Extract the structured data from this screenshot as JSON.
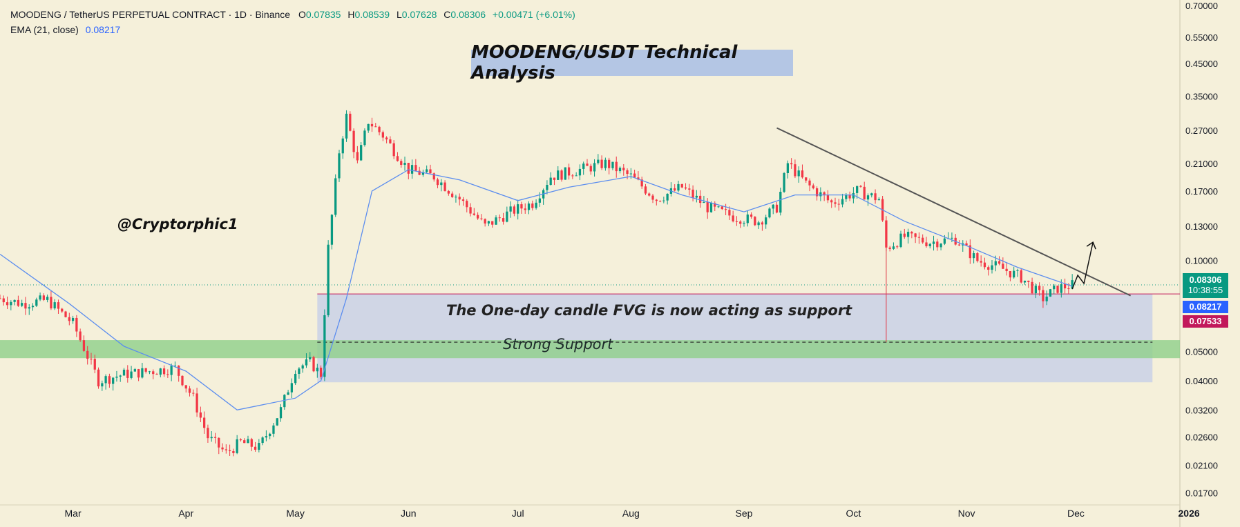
{
  "header": {
    "symbol": "MOODENG / TetherUS PERPETUAL CONTRACT · 1D · Binance",
    "open_label": "O",
    "open": "0.07835",
    "high_label": "H",
    "high": "0.08539",
    "low_label": "L",
    "low": "0.07628",
    "close_label": "C",
    "close": "0.08306",
    "change": "+0.00471 (+6.01%)",
    "ema_label": "EMA (21, close)",
    "ema_value": "0.08217"
  },
  "annotations": {
    "title": "MOODENG/USDT Technical Analysis",
    "handle": "@Cryptorphic1",
    "fvg_note": "The One-day candle FVG is now acting as support",
    "support_note": "Strong Support"
  },
  "price_tags": {
    "last_price": "0.08306",
    "countdown": "10:38:55",
    "ema": "0.08217",
    "low": "0.07533"
  },
  "colors": {
    "bull": "#089981",
    "bear": "#f23645",
    "ema_line": "#5b8def",
    "fvg_zone": "#c3cde8",
    "support_zone": "#8fd08a",
    "trendline": "#555555",
    "title_bg": "#b4c6e4",
    "last_tag": "#089981",
    "ema_tag": "#2962ff",
    "low_tag": "#c2185b"
  },
  "chart_data": {
    "type": "candlestick",
    "scale": "log",
    "ylim": [
      0.0155,
      0.73
    ],
    "y_ticks": [
      0.7,
      0.55,
      0.45,
      0.35,
      0.27,
      0.21,
      0.17,
      0.13,
      0.1,
      0.05,
      0.04,
      0.032,
      0.026,
      0.021,
      0.017
    ],
    "y_tick_labels": [
      "0.70000",
      "0.55000",
      "0.45000",
      "0.35000",
      "0.27000",
      "0.21000",
      "0.17000",
      "0.13000",
      "0.10000",
      "0.05000",
      "0.04000",
      "0.03200",
      "0.02600",
      "0.02100",
      "0.01700"
    ],
    "x_ticks": [
      "Mar",
      "Apr",
      "May",
      "Jun",
      "Jul",
      "Aug",
      "Sep",
      "Oct",
      "Nov",
      "Dec",
      "2026"
    ],
    "x_range": [
      "2025-02-09",
      "2026-01-15"
    ],
    "series": [
      {
        "name": "MOODENG / TetherUS PERPETUAL CONTRACT",
        "closing_path": [
          [
            "2025-02-09",
            0.075
          ],
          [
            "2025-02-15",
            0.072
          ],
          [
            "2025-02-22",
            0.074
          ],
          [
            "2025-03-01",
            0.062
          ],
          [
            "2025-03-08",
            0.04
          ],
          [
            "2025-03-15",
            0.042
          ],
          [
            "2025-03-22",
            0.043
          ],
          [
            "2025-03-29",
            0.044
          ],
          [
            "2025-04-03",
            0.035
          ],
          [
            "2025-04-07",
            0.026
          ],
          [
            "2025-04-12",
            0.023
          ],
          [
            "2025-04-16",
            0.025
          ],
          [
            "2025-04-21",
            0.024
          ],
          [
            "2025-04-27",
            0.032
          ],
          [
            "2025-05-01",
            0.044
          ],
          [
            "2025-05-05",
            0.046
          ],
          [
            "2025-05-08",
            0.042
          ],
          [
            "2025-05-10",
            0.11
          ],
          [
            "2025-05-13",
            0.23
          ],
          [
            "2025-05-15",
            0.3
          ],
          [
            "2025-05-18",
            0.21
          ],
          [
            "2025-05-21",
            0.29
          ],
          [
            "2025-05-25",
            0.26
          ],
          [
            "2025-06-01",
            0.2
          ],
          [
            "2025-06-08",
            0.19
          ],
          [
            "2025-06-15",
            0.16
          ],
          [
            "2025-06-22",
            0.13
          ],
          [
            "2025-06-29",
            0.145
          ],
          [
            "2025-07-05",
            0.155
          ],
          [
            "2025-07-10",
            0.19
          ],
          [
            "2025-07-18",
            0.2
          ],
          [
            "2025-07-25",
            0.21
          ],
          [
            "2025-08-01",
            0.19
          ],
          [
            "2025-08-08",
            0.16
          ],
          [
            "2025-08-15",
            0.175
          ],
          [
            "2025-08-22",
            0.15
          ],
          [
            "2025-08-29",
            0.14
          ],
          [
            "2025-09-05",
            0.135
          ],
          [
            "2025-09-10",
            0.15
          ],
          [
            "2025-09-13",
            0.21
          ],
          [
            "2025-09-18",
            0.18
          ],
          [
            "2025-09-25",
            0.155
          ],
          [
            "2025-10-02",
            0.17
          ],
          [
            "2025-10-08",
            0.16
          ],
          [
            "2025-10-10",
            0.11
          ],
          [
            "2025-10-15",
            0.12
          ],
          [
            "2025-10-22",
            0.115
          ],
          [
            "2025-10-29",
            0.118
          ],
          [
            "2025-11-04",
            0.1
          ],
          [
            "2025-11-10",
            0.095
          ],
          [
            "2025-11-16",
            0.088
          ],
          [
            "2025-11-22",
            0.075
          ],
          [
            "2025-11-26",
            0.081
          ],
          [
            "2025-11-30",
            0.083
          ]
        ]
      },
      {
        "name": "EMA (21, close)",
        "path": [
          [
            "2025-02-09",
            0.105
          ],
          [
            "2025-02-28",
            0.072
          ],
          [
            "2025-03-15",
            0.052
          ],
          [
            "2025-04-01",
            0.043
          ],
          [
            "2025-04-15",
            0.032
          ],
          [
            "2025-05-01",
            0.035
          ],
          [
            "2025-05-08",
            0.04
          ],
          [
            "2025-05-15",
            0.075
          ],
          [
            "2025-05-22",
            0.17
          ],
          [
            "2025-06-01",
            0.2
          ],
          [
            "2025-06-15",
            0.185
          ],
          [
            "2025-07-01",
            0.158
          ],
          [
            "2025-07-15",
            0.175
          ],
          [
            "2025-08-01",
            0.19
          ],
          [
            "2025-08-15",
            0.165
          ],
          [
            "2025-09-01",
            0.145
          ],
          [
            "2025-09-15",
            0.165
          ],
          [
            "2025-10-01",
            0.165
          ],
          [
            "2025-10-15",
            0.135
          ],
          [
            "2025-11-01",
            0.112
          ],
          [
            "2025-11-15",
            0.095
          ],
          [
            "2025-11-30",
            0.0822
          ]
        ]
      }
    ],
    "zones": [
      {
        "label": "The One-day candle FVG is now acting as support",
        "from": "2025-05-07",
        "to": "2025-12-22",
        "low": 0.0395,
        "high": 0.0775
      },
      {
        "label": "Strong Support",
        "from": "2025-02-09",
        "to": "2026-01-10",
        "low": 0.0475,
        "high": 0.0545
      }
    ],
    "trendline": [
      [
        "2025-09-10",
        0.275
      ],
      [
        "2025-12-16",
        0.0765
      ]
    ],
    "current_price": 0.08306,
    "ema_value": 0.08217,
    "low_marker": 0.07533
  }
}
